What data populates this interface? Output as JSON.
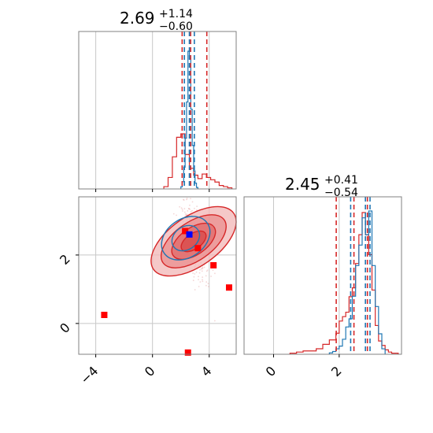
{
  "chart_data": {
    "type": "corner",
    "colors": {
      "red": "#d62728",
      "blue": "#1f77b4",
      "marker_red": "#ff0000",
      "marker_blue": "#0000ff",
      "grid": "#c8c8c8"
    },
    "series": [
      {
        "name": "",
        "color": "#d62728"
      },
      {
        "name": "",
        "color": "#1f77b4"
      }
    ],
    "params": [
      {
        "title_value": "2.69",
        "title_plus": "+1.14",
        "title_minus": "−0.60",
        "xlim": [
          -5.2,
          5.9
        ],
        "xticks": [
          -4,
          0,
          4
        ],
        "xticklabels": [
          "−4",
          "0",
          "4"
        ],
        "red_quantiles": [
          2.09,
          2.69,
          3.83
        ],
        "blue_quantiles": [
          2.25,
          2.6,
          2.95
        ],
        "red_hist": {
          "bins": [
            0.8,
            1.1,
            1.4,
            1.7,
            2.0,
            2.3,
            2.6,
            2.9,
            3.2,
            3.5,
            3.8,
            4.1,
            4.4,
            4.7,
            5.0,
            5.3,
            5.6
          ],
          "counts": [
            2,
            10,
            28,
            45,
            48,
            30,
            18,
            12,
            9,
            13,
            10,
            8,
            6,
            3,
            2,
            1
          ]
        },
        "blue_hist": {
          "bins": [
            2.0,
            2.1,
            2.2,
            2.3,
            2.4,
            2.5,
            2.6,
            2.7,
            2.8,
            2.9,
            3.0,
            3.1,
            3.2
          ],
          "counts": [
            3,
            10,
            30,
            70,
            120,
            190,
            180,
            110,
            60,
            25,
            8,
            2
          ]
        }
      },
      {
        "title_value": "2.45",
        "title_plus": "+0.41",
        "title_minus": "−0.54",
        "xlim": [
          -0.9,
          3.9
        ],
        "xticks": [
          0,
          2
        ],
        "xticklabels": [
          "0",
          "2"
        ],
        "ylim": [
          -0.9,
          3.7
        ],
        "yticks": [
          0,
          2
        ],
        "yticklabels": [
          "0",
          "2"
        ],
        "red_quantiles": [
          1.91,
          2.45,
          2.86
        ],
        "blue_quantiles": [
          2.35,
          2.8,
          2.94
        ],
        "red_hist": {
          "bins": [
            0.5,
            0.7,
            0.9,
            1.1,
            1.3,
            1.5,
            1.7,
            1.9,
            2.0,
            2.1,
            2.2,
            2.3,
            2.4,
            2.5,
            2.6,
            2.7,
            2.8,
            2.9,
            3.0,
            3.1,
            3.2,
            3.3,
            3.4,
            3.5,
            3.6,
            3.8
          ],
          "counts": [
            1,
            2,
            3,
            3,
            5,
            9,
            13,
            19,
            30,
            34,
            38,
            52,
            60,
            82,
            108,
            128,
            108,
            90,
            58,
            26,
            12,
            8,
            4,
            2,
            1
          ]
        },
        "blue_hist": {
          "bins": [
            1.7,
            1.8,
            1.9,
            2.0,
            2.1,
            2.2,
            2.3,
            2.4,
            2.5,
            2.6,
            2.7,
            2.8,
            2.9,
            3.0,
            3.1,
            3.2,
            3.3,
            3.4
          ],
          "counts": [
            2,
            4,
            8,
            12,
            22,
            40,
            52,
            85,
            130,
            160,
            200,
            175,
            210,
            130,
            70,
            30,
            8
          ]
        }
      }
    ],
    "scatter_markers": [
      {
        "x": -3.4,
        "y": 0.25,
        "color": "#ff0000"
      },
      {
        "x": 2.3,
        "y": 2.7,
        "color": "#ff0000"
      },
      {
        "x": 3.2,
        "y": 2.2,
        "color": "#ff0000"
      },
      {
        "x": 4.3,
        "y": 1.7,
        "color": "#ff0000"
      },
      {
        "x": 5.4,
        "y": 1.05,
        "color": "#ff0000"
      },
      {
        "x": 2.5,
        "y": -0.85,
        "color": "#ff0000"
      },
      {
        "x": 2.6,
        "y": 2.6,
        "color": "#0000ff"
      }
    ],
    "contours": {
      "center": [
        2.9,
        2.4
      ],
      "angle_deg": -60,
      "red_levels": [
        [
          1.3,
          0.55
        ],
        [
          1.0,
          0.42
        ],
        [
          0.7,
          0.28
        ],
        [
          0.4,
          0.16
        ]
      ],
      "blue_levels": [
        [
          1.0,
          0.32
        ],
        [
          0.6,
          0.18
        ]
      ]
    }
  }
}
